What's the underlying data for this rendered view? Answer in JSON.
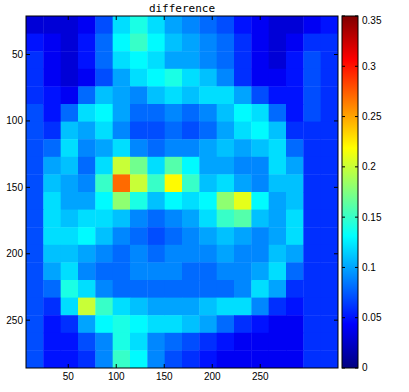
{
  "chart_data": {
    "type": "heatmap",
    "title": "difference",
    "xlim": [
      6,
      331
    ],
    "ylim": [
      21,
      286
    ],
    "xticks": [
      50,
      100,
      150,
      200,
      250
    ],
    "yticks": [
      50,
      100,
      150,
      200,
      250
    ],
    "cells": [
      [
        0.03,
        0.03,
        0.03,
        0.04,
        0.07,
        0.12,
        0.14,
        0.12,
        0.1,
        0.09,
        0.08,
        0.07,
        0.05,
        0.04,
        0.03,
        0.03,
        0.04,
        0.05
      ],
      [
        0.05,
        0.04,
        0.03,
        0.05,
        0.08,
        0.13,
        0.15,
        0.13,
        0.11,
        0.1,
        0.09,
        0.08,
        0.06,
        0.04,
        0.03,
        0.04,
        0.06,
        0.06
      ],
      [
        0.06,
        0.04,
        0.03,
        0.05,
        0.08,
        0.12,
        0.13,
        0.12,
        0.1,
        0.1,
        0.09,
        0.08,
        0.06,
        0.04,
        0.03,
        0.05,
        0.07,
        0.06
      ],
      [
        0.06,
        0.04,
        0.03,
        0.04,
        0.07,
        0.1,
        0.12,
        0.13,
        0.14,
        0.12,
        0.11,
        0.09,
        0.06,
        0.04,
        0.04,
        0.05,
        0.07,
        0.06
      ],
      [
        0.06,
        0.05,
        0.04,
        0.08,
        0.11,
        0.1,
        0.09,
        0.11,
        0.12,
        0.11,
        0.12,
        0.12,
        0.1,
        0.07,
        0.05,
        0.05,
        0.07,
        0.06
      ],
      [
        0.07,
        0.05,
        0.08,
        0.12,
        0.13,
        0.1,
        0.08,
        0.08,
        0.09,
        0.08,
        0.09,
        0.11,
        0.13,
        0.12,
        0.08,
        0.05,
        0.07,
        0.06
      ],
      [
        0.07,
        0.06,
        0.11,
        0.1,
        0.12,
        0.09,
        0.07,
        0.07,
        0.08,
        0.07,
        0.08,
        0.1,
        0.12,
        0.13,
        0.11,
        0.06,
        0.06,
        0.06
      ],
      [
        0.07,
        0.08,
        0.12,
        0.09,
        0.1,
        0.12,
        0.09,
        0.08,
        0.09,
        0.09,
        0.1,
        0.11,
        0.1,
        0.11,
        0.12,
        0.08,
        0.06,
        0.06
      ],
      [
        0.07,
        0.1,
        0.11,
        0.08,
        0.12,
        0.2,
        0.17,
        0.12,
        0.16,
        0.13,
        0.1,
        0.1,
        0.09,
        0.09,
        0.12,
        0.1,
        0.06,
        0.06
      ],
      [
        0.07,
        0.11,
        0.1,
        0.09,
        0.15,
        0.27,
        0.2,
        0.15,
        0.22,
        0.15,
        0.11,
        0.12,
        0.1,
        0.09,
        0.11,
        0.11,
        0.06,
        0.06
      ],
      [
        0.07,
        0.12,
        0.1,
        0.1,
        0.13,
        0.18,
        0.14,
        0.11,
        0.13,
        0.12,
        0.13,
        0.18,
        0.21,
        0.13,
        0.1,
        0.11,
        0.06,
        0.06
      ],
      [
        0.07,
        0.12,
        0.11,
        0.12,
        0.12,
        0.11,
        0.09,
        0.08,
        0.09,
        0.1,
        0.12,
        0.15,
        0.16,
        0.11,
        0.1,
        0.12,
        0.06,
        0.06
      ],
      [
        0.07,
        0.12,
        0.12,
        0.13,
        0.11,
        0.09,
        0.08,
        0.07,
        0.08,
        0.09,
        0.1,
        0.11,
        0.1,
        0.09,
        0.1,
        0.12,
        0.06,
        0.06
      ],
      [
        0.07,
        0.11,
        0.11,
        0.1,
        0.09,
        0.08,
        0.09,
        0.08,
        0.09,
        0.09,
        0.09,
        0.1,
        0.09,
        0.09,
        0.11,
        0.1,
        0.06,
        0.06
      ],
      [
        0.07,
        0.1,
        0.12,
        0.09,
        0.08,
        0.08,
        0.09,
        0.09,
        0.09,
        0.08,
        0.08,
        0.09,
        0.09,
        0.1,
        0.12,
        0.08,
        0.06,
        0.06
      ],
      [
        0.07,
        0.08,
        0.14,
        0.12,
        0.09,
        0.08,
        0.08,
        0.08,
        0.08,
        0.08,
        0.08,
        0.08,
        0.09,
        0.12,
        0.1,
        0.06,
        0.06,
        0.06
      ],
      [
        0.07,
        0.06,
        0.12,
        0.2,
        0.15,
        0.12,
        0.11,
        0.1,
        0.1,
        0.1,
        0.11,
        0.12,
        0.12,
        0.09,
        0.06,
        0.05,
        0.06,
        0.06
      ],
      [
        0.07,
        0.05,
        0.06,
        0.1,
        0.13,
        0.14,
        0.13,
        0.12,
        0.12,
        0.11,
        0.1,
        0.08,
        0.06,
        0.05,
        0.04,
        0.04,
        0.06,
        0.06
      ],
      [
        0.07,
        0.05,
        0.05,
        0.07,
        0.09,
        0.14,
        0.12,
        0.09,
        0.08,
        0.07,
        0.06,
        0.05,
        0.04,
        0.04,
        0.04,
        0.04,
        0.06,
        0.06
      ],
      [
        0.07,
        0.05,
        0.05,
        0.06,
        0.09,
        0.15,
        0.13,
        0.09,
        0.07,
        0.06,
        0.05,
        0.04,
        0.04,
        0.04,
        0.04,
        0.04,
        0.06,
        0.06
      ]
    ],
    "colorbar": {
      "range": [
        0,
        0.35
      ],
      "ticks": [
        0,
        0.05,
        0.1,
        0.15,
        0.2,
        0.25,
        0.3,
        0.35
      ]
    }
  }
}
